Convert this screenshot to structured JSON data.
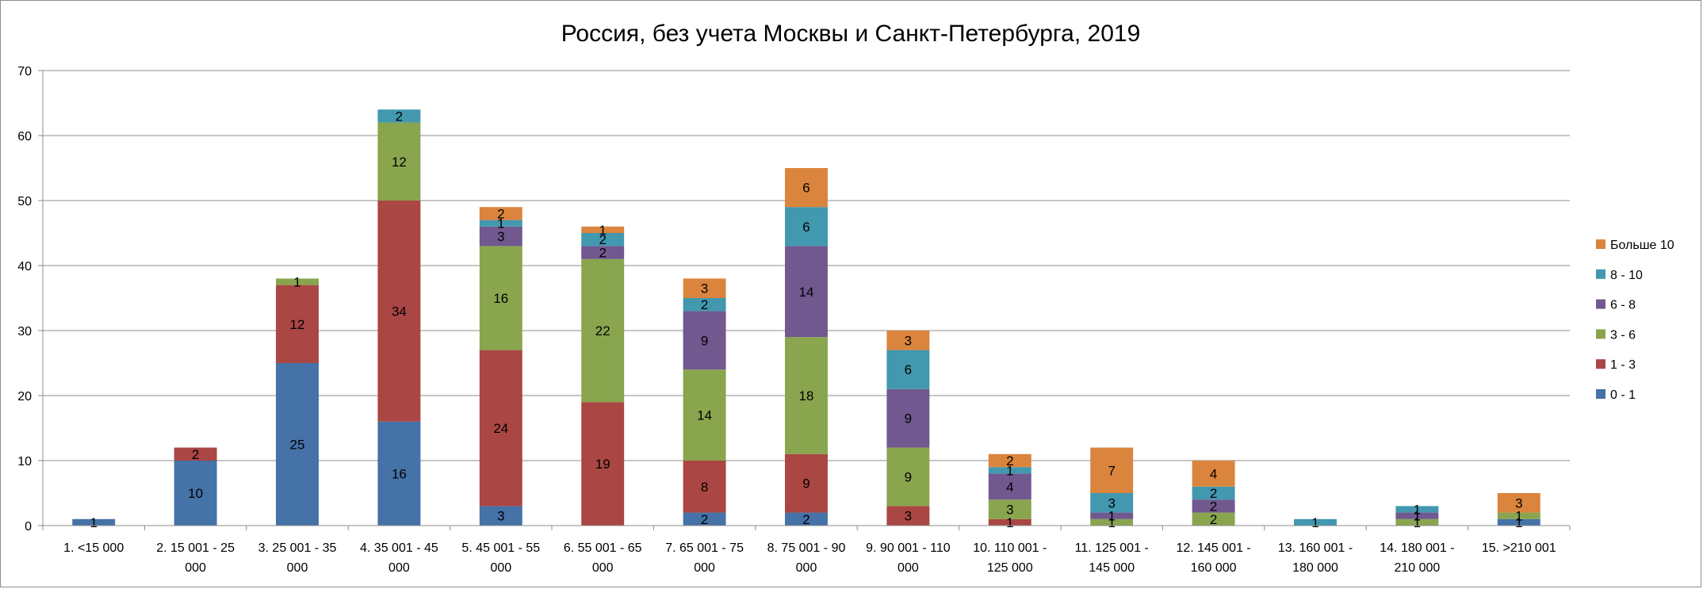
{
  "chart_data": {
    "type": "bar",
    "stacked": true,
    "title": "Россия, без учета Москвы и Санкт-Петербурга, 2019",
    "xlabel": "",
    "ylabel": "",
    "ylim": [
      0,
      70
    ],
    "yticks": [
      "0",
      "10",
      "20",
      "30",
      "40",
      "50",
      "60",
      "70"
    ],
    "grid": true,
    "legend_position": "right",
    "categories": [
      [
        "1. <15 000"
      ],
      [
        "2. 15 001 - 25",
        "000"
      ],
      [
        "3. 25 001 - 35",
        "000"
      ],
      [
        "4. 35 001 - 45",
        "000"
      ],
      [
        "5. 45 001 - 55",
        "000"
      ],
      [
        "6. 55 001 - 65",
        "000"
      ],
      [
        "7. 65 001 - 75",
        "000"
      ],
      [
        "8. 75 001 - 90",
        "000"
      ],
      [
        "9. 90 001 - 110",
        "000"
      ],
      [
        "10. 110 001 -",
        "125 000"
      ],
      [
        "11. 125 001 -",
        "145 000"
      ],
      [
        "12. 145 001 -",
        "160 000"
      ],
      [
        "13. 160 001 -",
        "180 000"
      ],
      [
        "14. 180 001 -",
        "210 000"
      ],
      [
        "15. >210 001"
      ]
    ],
    "series": [
      {
        "name": "0 - 1",
        "color": "#4572A7",
        "values": [
          1,
          10,
          25,
          16,
          3,
          0,
          2,
          2,
          0,
          0,
          0,
          0,
          0,
          0,
          1
        ]
      },
      {
        "name": "1 - 3",
        "color": "#AA4643",
        "values": [
          0,
          2,
          12,
          34,
          24,
          19,
          8,
          9,
          3,
          1,
          0,
          0,
          0,
          0,
          0
        ]
      },
      {
        "name": "3 - 6",
        "color": "#89A54E",
        "values": [
          0,
          0,
          1,
          12,
          16,
          22,
          14,
          18,
          9,
          3,
          1,
          2,
          0,
          1,
          1
        ]
      },
      {
        "name": "6 - 8",
        "color": "#71588F",
        "values": [
          0,
          0,
          0,
          0,
          3,
          2,
          9,
          14,
          9,
          4,
          1,
          2,
          0,
          1,
          0
        ]
      },
      {
        "name": "8 - 10",
        "color": "#4198AF",
        "values": [
          0,
          0,
          0,
          2,
          1,
          2,
          2,
          6,
          6,
          1,
          3,
          2,
          1,
          1,
          0
        ]
      },
      {
        "name": "Больше 10",
        "color": "#DB843D",
        "values": [
          0,
          0,
          0,
          0,
          2,
          1,
          3,
          6,
          3,
          2,
          7,
          4,
          0,
          0,
          3
        ]
      }
    ]
  }
}
